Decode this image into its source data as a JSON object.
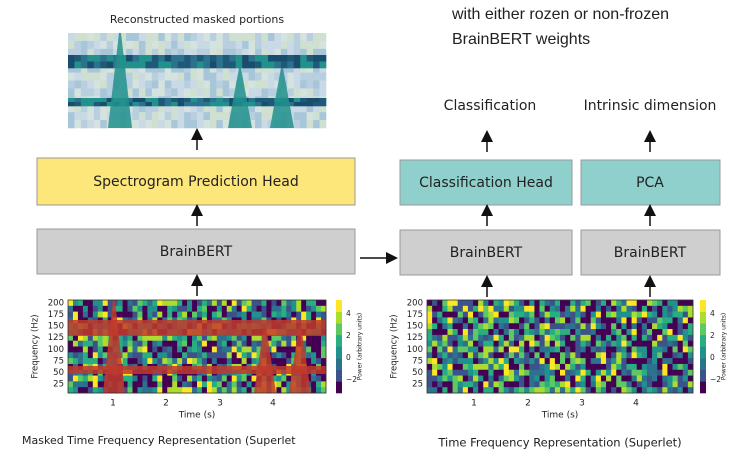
{
  "note_lines": [
    "with either rozen or non-frozen",
    "BrainBERT weights"
  ],
  "left": {
    "caption_top": "Reconstructed masked portions",
    "head": "Spectrogram Prediction Head",
    "encoder": "BrainBERT",
    "caption": "Masked Time Frequency Representation (Superlet"
  },
  "right": {
    "outputs": [
      {
        "label": "Classification",
        "head": "Classification Head",
        "encoder": "BrainBERT"
      },
      {
        "label": "Intrinsic dimension",
        "head": "PCA",
        "encoder": "BrainBERT"
      }
    ],
    "caption": "Time Frequency Representation (Superlet)"
  },
  "spectrograms": [
    {
      "y_label": "Frequency (Hz)",
      "yticks": [
        "200",
        "175",
        "150",
        "125",
        "100",
        "75",
        "50",
        "25"
      ],
      "x_label": "Time (s)",
      "xticks": [
        "1",
        "2",
        "3",
        "4"
      ],
      "colorbar_label": "Power (arbitrary units)",
      "colorbar_ticks": [
        "4",
        "2",
        "0",
        "−2"
      ]
    },
    {
      "y_label": "Frequency (Hz)",
      "yticks": [
        "200",
        "175",
        "150",
        "125",
        "100",
        "75",
        "50",
        "25"
      ],
      "x_label": "Time (s)",
      "xticks": [
        "1",
        "2",
        "3",
        "4"
      ],
      "colorbar_label": "Power (arbitrary units)",
      "colorbar_ticks": [
        "4",
        "2",
        "0",
        "−2"
      ]
    }
  ]
}
